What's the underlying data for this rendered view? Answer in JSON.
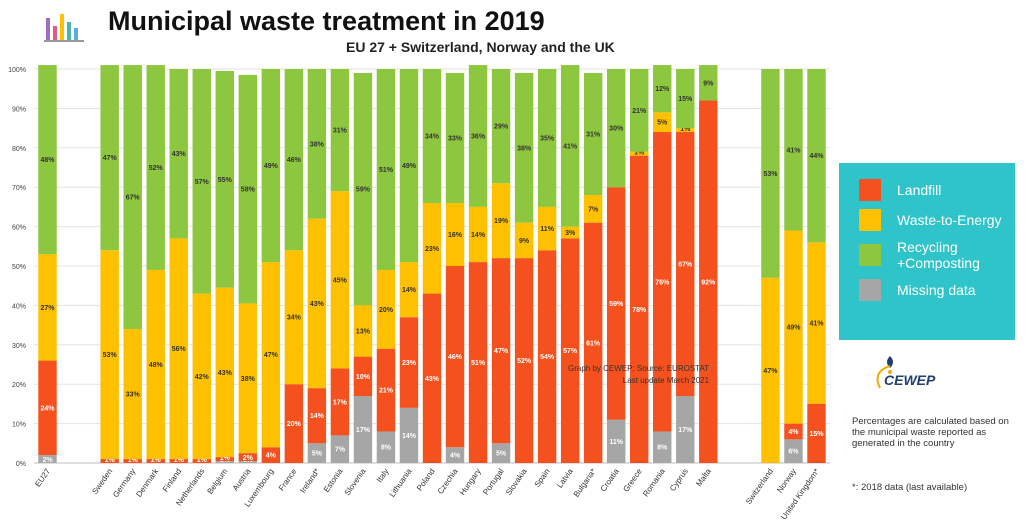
{
  "header": {
    "title": "Municipal waste treatment in 2019",
    "subtitle": "EU 27 + Switzerland, Norway and the UK"
  },
  "legend": [
    {
      "label": "Landfill",
      "color": "#f4511e"
    },
    {
      "label": "Waste-to-Energy",
      "color": "#ffc000"
    },
    {
      "label": "Recycling +Composting",
      "color": "#8dc63f"
    },
    {
      "label": "Missing data",
      "color": "#a6a6a6"
    }
  ],
  "logo": {
    "text": "CEWEP"
  },
  "notes": {
    "source_line1": "Graph by CEWEP; Source: EUROSTAT",
    "source_line2": "Last update March 2021",
    "calc": "Percentages are calculated based on the municipal waste reported as generated in the country",
    "data_2018": "*: 2018 data (last available)"
  },
  "chart_data": {
    "type": "bar",
    "stacked": true,
    "title": "Municipal waste treatment in 2019",
    "subtitle": "EU 27 + Switzerland, Norway and the UK",
    "ylim": [
      0,
      100
    ],
    "y_ticks": [
      "0%",
      "10%",
      "20%",
      "30%",
      "40%",
      "50%",
      "60%",
      "70%",
      "80%",
      "90%",
      "100%"
    ],
    "grid": true,
    "legend_position": "right",
    "categories": [
      "EU27",
      "Sweden",
      "Germany",
      "Denmark",
      "Finland",
      "Netherlands",
      "Belgium",
      "Austria",
      "Luxembourg",
      "France",
      "Ireland*",
      "Estonia",
      "Slovenia",
      "Italy",
      "Lithuania",
      "Poland",
      "Czechia",
      "Hungary",
      "Portugal",
      "Slovakia",
      "Spain",
      "Latvia",
      "Bulgaria*",
      "Croatia",
      "Greece",
      "Romania",
      "Cyprus",
      "Malta",
      "Switzerland",
      "Norway",
      "United Kingdom*"
    ],
    "groups": [
      1,
      2,
      2,
      2,
      2,
      2,
      2,
      2,
      2,
      2,
      2,
      2,
      2,
      2,
      2,
      2,
      2,
      2,
      2,
      2,
      2,
      2,
      2,
      2,
      2,
      2,
      2,
      2,
      3,
      3,
      3
    ],
    "series": [
      {
        "name": "Missing data",
        "color": "#a6a6a6",
        "values": [
          2,
          0,
          0,
          0,
          0,
          0,
          0.5,
          0.5,
          0,
          0,
          5,
          7,
          17,
          8,
          14,
          0,
          4,
          0,
          5,
          0,
          0,
          0,
          0,
          11,
          0,
          8,
          17,
          0,
          0,
          6,
          0
        ],
        "labels": [
          "2%",
          "",
          "",
          "",
          "",
          "",
          "1%",
          "1%",
          "",
          "",
          "5%",
          "7%",
          "17%",
          "8%",
          "14%",
          "",
          "4%",
          "",
          "5%",
          "",
          "",
          "",
          "",
          "11%",
          "",
          "8%",
          "17%",
          "",
          "",
          "6%",
          ""
        ]
      },
      {
        "name": "Landfill",
        "color": "#f4511e",
        "values": [
          24,
          1,
          1,
          1,
          1,
          1,
          1,
          2,
          4,
          20,
          14,
          17,
          10,
          21,
          23,
          43,
          46,
          51,
          47,
          52,
          54,
          57,
          61,
          59,
          78,
          76,
          67,
          92,
          0,
          4,
          15
        ],
        "labels": [
          "24%",
          "1%",
          "1%",
          "1%",
          "1%",
          "1%",
          "1%",
          "2%",
          "4%",
          "20%",
          "14%",
          "17%",
          "10%",
          "21%",
          "23%",
          "43%",
          "46%",
          "51%",
          "47%",
          "52%",
          "54%",
          "57%",
          "61%",
          "59%",
          "78%",
          "76%",
          "67%",
          "92%",
          "",
          "4%",
          "15%"
        ]
      },
      {
        "name": "Waste-to-Energy",
        "color": "#ffc000",
        "values": [
          27,
          53,
          33,
          48,
          56,
          42,
          43,
          38,
          47,
          34,
          43,
          45,
          13,
          20,
          14,
          23,
          16,
          14,
          19,
          9,
          11,
          3,
          7,
          0,
          1,
          5,
          1,
          0,
          47,
          49,
          41
        ],
        "labels": [
          "27%",
          "53%",
          "33%",
          "48%",
          "56%",
          "42%",
          "43%",
          "38%",
          "47%",
          "34%",
          "43%",
          "45%",
          "13%",
          "20%",
          "14%",
          "23%",
          "16%",
          "14%",
          "19%",
          "9%",
          "11%",
          "3%",
          "7%",
          "",
          "1%",
          "5%",
          "1%",
          "",
          "47%",
          "49%",
          "41%"
        ]
      },
      {
        "name": "Recycling +Composting",
        "color": "#8dc63f",
        "values": [
          48,
          47,
          67,
          52,
          43,
          57,
          55,
          58,
          49,
          46,
          38,
          31,
          59,
          51,
          49,
          34,
          33,
          36,
          29,
          38,
          35,
          41,
          31,
          30,
          21,
          12,
          15,
          9,
          53,
          41,
          44
        ],
        "labels": [
          "48%",
          "47%",
          "67%",
          "52%",
          "43%",
          "57%",
          "55%",
          "58%",
          "49%",
          "46%",
          "38%",
          "31%",
          "59%",
          "51%",
          "49%",
          "34%",
          "33%",
          "36%",
          "29%",
          "38%",
          "35%",
          "41%",
          "31%",
          "30%",
          "21%",
          "12%",
          "15%",
          "9%",
          "53%",
          "41%",
          "44%"
        ]
      }
    ]
  }
}
